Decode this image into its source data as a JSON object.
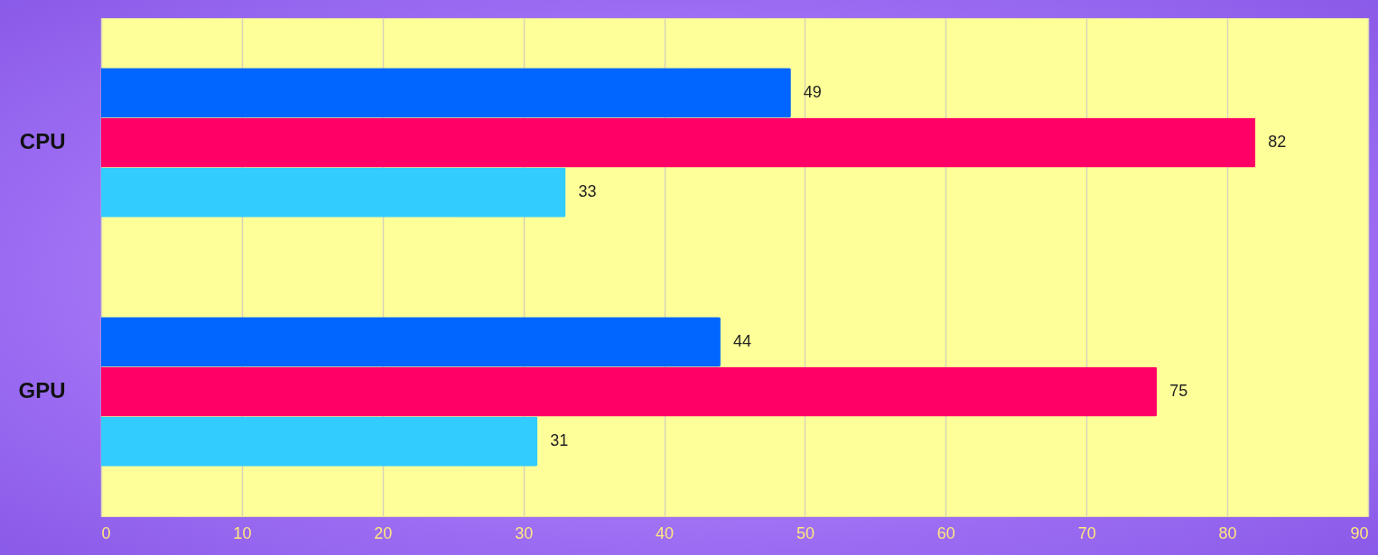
{
  "chart_data": {
    "type": "bar",
    "orientation": "horizontal",
    "categories": [
      "CPU",
      "GPU"
    ],
    "series": [
      {
        "color": "#0066ff",
        "values": [
          49,
          44
        ]
      },
      {
        "color": "#ff0066",
        "values": [
          82,
          75
        ]
      },
      {
        "color": "#33ccff",
        "values": [
          33,
          31
        ]
      }
    ],
    "xlim": [
      0,
      90
    ],
    "xticks": [
      0,
      10,
      20,
      30,
      40,
      50,
      60,
      70,
      80,
      90
    ],
    "grid": "x",
    "data_labels": true,
    "legend": false
  }
}
